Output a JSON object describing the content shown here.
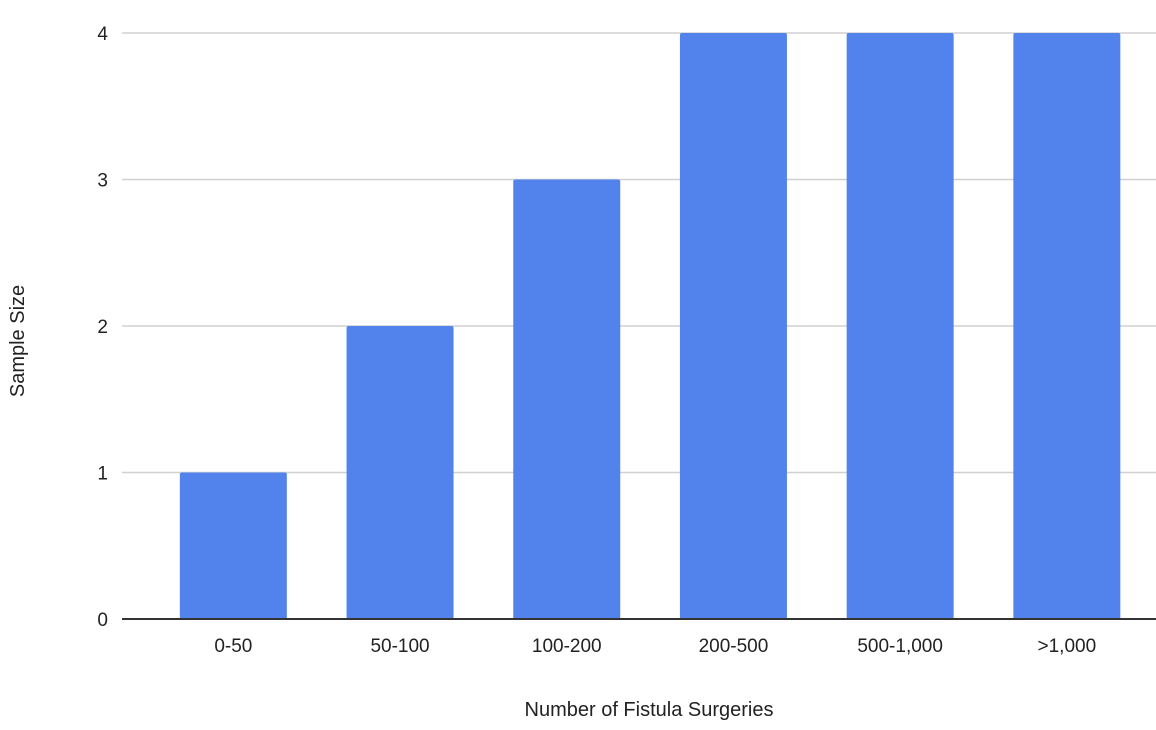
{
  "chart_data": {
    "type": "bar",
    "title": "",
    "xlabel": "Number of Fistula Surgeries",
    "ylabel": "Sample Size",
    "categories": [
      "0-50",
      "50-100",
      "100-200",
      "200-500",
      "500-1,000",
      ">1,000"
    ],
    "values": [
      1,
      2,
      3,
      4,
      4,
      4
    ],
    "ylim": [
      0,
      4
    ],
    "yticks": [
      "0",
      "1",
      "2",
      "3",
      "4"
    ],
    "grid": true,
    "legend": "none",
    "bar_color": "#5283EC"
  }
}
